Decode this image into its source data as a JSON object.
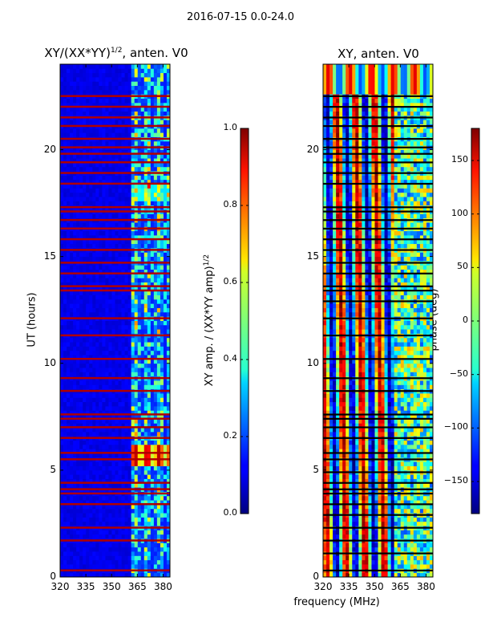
{
  "suptitle": "2016-07-15 0.0-24.0",
  "chart_data": [
    {
      "type": "heatmap",
      "title": "XY/(XX*YY)",
      "title_exponent": "1/2",
      "title_suffix": ", anten. V0",
      "xlabel": "",
      "ylabel": "UT (hours)",
      "xlim": [
        320,
        384
      ],
      "ylim": [
        0,
        24
      ],
      "xticks": [
        320,
        335,
        350,
        365,
        380
      ],
      "yticks": [
        0,
        5,
        10,
        15,
        20
      ],
      "colorbar": {
        "label": "XY amp. / (XX*YY amp)",
        "label_exponent": "1/2",
        "range": [
          0.0,
          1.0
        ],
        "ticks": [
          "0.0",
          "0.2",
          "0.4",
          "0.6",
          "0.8",
          "1.0"
        ],
        "colormap": "jet"
      },
      "content_description": "Mostly low amplitude (~0.1); higher values (0.3-0.6) concentrated at 362-384 MHz; many full-width horizontal red bands (1.0) at flagged times",
      "flag_hours": [
        0.3,
        1.7,
        2.3,
        3.4,
        3.9,
        4.1,
        4.4,
        5.5,
        5.8,
        6.5,
        7.0,
        7.4,
        7.6,
        8.7,
        9.3,
        10.2,
        11.3,
        12.1,
        13.4,
        13.6,
        14.2,
        14.7,
        15.3,
        15.8,
        16.3,
        16.7,
        17.1,
        17.3,
        18.4,
        18.9,
        19.4,
        19.8,
        20.1,
        20.5,
        21.1,
        21.5,
        22.0,
        22.5
      ]
    },
    {
      "type": "heatmap",
      "title": "XY, anten. V0",
      "xlabel": "frequency (MHz)",
      "ylabel": "",
      "xlim": [
        320,
        384
      ],
      "ylim": [
        0,
        24
      ],
      "xticks": [
        320,
        335,
        350,
        365,
        380
      ],
      "yticks": [
        0,
        5,
        10,
        15,
        20
      ],
      "colorbar": {
        "label": "phase (deg)",
        "range": [
          -180,
          180
        ],
        "ticks": [
          "150",
          "100",
          "50",
          "0",
          "−50",
          "−100",
          "−150"
        ],
        "tick_values": [
          150,
          100,
          50,
          0,
          -50,
          -100,
          -150
        ],
        "colormap": "jet"
      },
      "content_description": "Phase varies strongly with frequency producing vertical red/blue stripes with period ~11 MHz; black horizontal lines at flagged times",
      "flag_hours": [
        0.3,
        1.1,
        1.7,
        2.3,
        2.9,
        3.4,
        3.9,
        4.1,
        4.4,
        4.9,
        5.5,
        5.8,
        6.5,
        7.0,
        7.4,
        7.6,
        8.7,
        9.3,
        10.2,
        11.3,
        12.1,
        12.9,
        13.4,
        13.6,
        14.2,
        14.7,
        15.3,
        15.8,
        16.3,
        16.7,
        17.1,
        17.3,
        18.4,
        18.9,
        19.4,
        19.8,
        20.1,
        20.5,
        21.1,
        21.5,
        22.0,
        22.5
      ],
      "stripe_period_mhz": 11
    }
  ]
}
